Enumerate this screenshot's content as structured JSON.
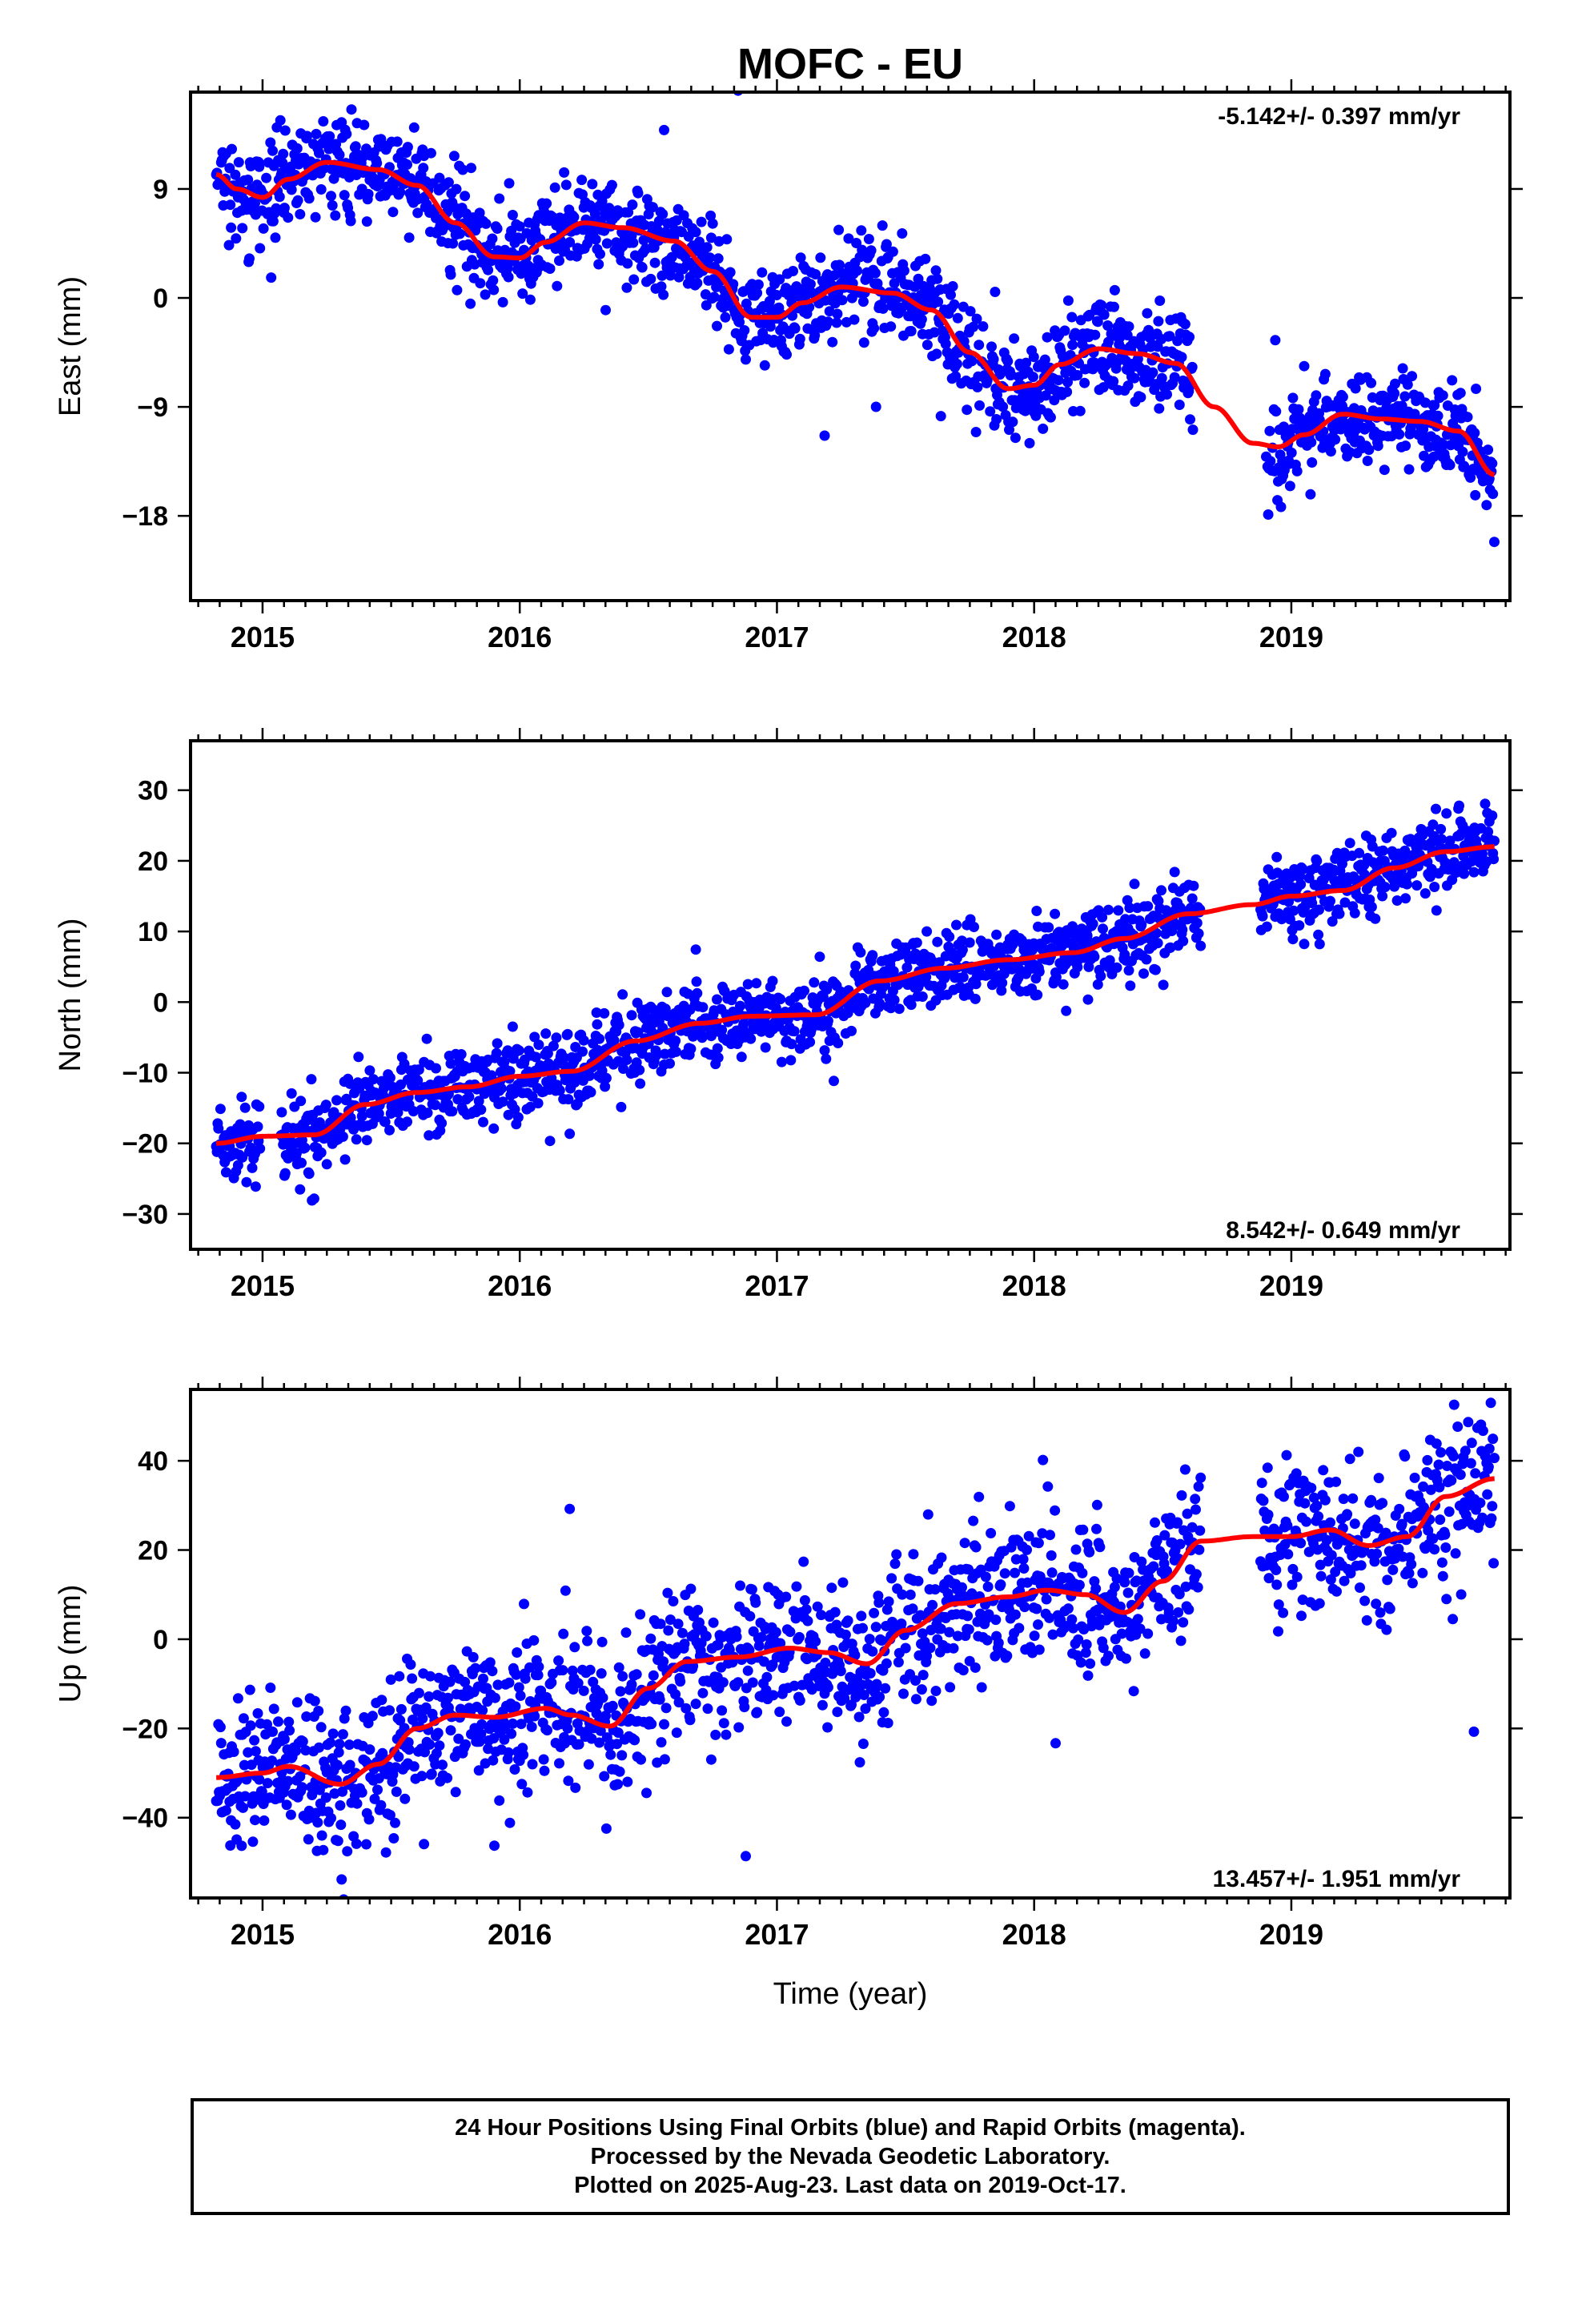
{
  "title": "MOFC - EU",
  "colors": {
    "points": "#0000ff",
    "trend": "#ff0000",
    "frame": "#000000"
  },
  "chart_data": [
    {
      "type": "scatter",
      "component": "east",
      "ylabel": "East (mm)",
      "xlabel": "",
      "rate_text": "-5.142+/- 0.397 mm/yr",
      "rate_position": "top-right",
      "xlim": [
        2014.72,
        2019.85
      ],
      "ylim": [
        -25,
        17
      ],
      "xticks": [
        2015,
        2016,
        2017,
        2018,
        2019
      ],
      "xtick_labels": [
        "2015",
        "2016",
        "2017",
        "2018",
        "2019"
      ],
      "yticks": [
        9,
        0,
        -9,
        -18
      ],
      "ytick_labels": [
        "9",
        "0",
        "−9",
        "−18"
      ],
      "grid": false,
      "series": [
        {
          "kind": "points",
          "color": "#0000ff",
          "x_start": 2014.82,
          "x_end": 2019.79,
          "gaps": [
            [
              2018.62,
              2018.9
            ]
          ],
          "noise_sd": 2.0
        },
        {
          "kind": "trend-line",
          "color": "#ff0000",
          "x": [
            2014.82,
            2014.9,
            2015.0,
            2015.1,
            2015.25,
            2015.45,
            2015.6,
            2015.75,
            2015.9,
            2016.0,
            2016.1,
            2016.25,
            2016.4,
            2016.6,
            2016.75,
            2016.9,
            2017.0,
            2017.1,
            2017.25,
            2017.45,
            2017.6,
            2017.75,
            2017.9,
            2018.0,
            2018.1,
            2018.25,
            2018.4,
            2018.55,
            2018.7,
            2018.85,
            2018.95,
            2019.05,
            2019.2,
            2019.35,
            2019.5,
            2019.65,
            2019.79
          ],
          "y": [
            10.2,
            9.0,
            8.3,
            9.8,
            11.2,
            10.6,
            9.3,
            6.2,
            3.4,
            3.3,
            4.6,
            6.2,
            5.8,
            4.7,
            2.2,
            -1.6,
            -1.6,
            -0.4,
            0.9,
            0.4,
            -1.0,
            -4.5,
            -7.5,
            -7.2,
            -5.5,
            -4.2,
            -4.6,
            -5.4,
            -9.0,
            -12.0,
            -12.3,
            -11.3,
            -9.6,
            -10.0,
            -10.2,
            -11.0,
            -14.6
          ]
        }
      ]
    },
    {
      "type": "scatter",
      "component": "north",
      "ylabel": "North (mm)",
      "xlabel": "",
      "rate_text": "8.542+/- 0.649 mm/yr",
      "rate_position": "bottom-right",
      "xlim": [
        2014.72,
        2019.85
      ],
      "ylim": [
        -35,
        37
      ],
      "xticks": [
        2015,
        2016,
        2017,
        2018,
        2019
      ],
      "xtick_labels": [
        "2015",
        "2016",
        "2017",
        "2018",
        "2019"
      ],
      "yticks": [
        30,
        20,
        10,
        0,
        -10,
        -20,
        -30
      ],
      "ytick_labels": [
        "30",
        "20",
        "10",
        "0",
        "−10",
        "−20",
        "−30"
      ],
      "grid": false,
      "series": [
        {
          "kind": "points",
          "color": "#0000ff",
          "x_start": 2014.82,
          "x_end": 2019.79,
          "gaps": [
            [
              2014.99,
              2015.07
            ],
            [
              2018.65,
              2018.88
            ]
          ],
          "noise_sd": 2.8
        },
        {
          "kind": "trend-line",
          "color": "#ff0000",
          "x": [
            2014.82,
            2015.0,
            2015.2,
            2015.4,
            2015.6,
            2015.8,
            2016.0,
            2016.2,
            2016.45,
            2016.7,
            2016.9,
            2017.15,
            2017.4,
            2017.65,
            2017.9,
            2018.15,
            2018.35,
            2018.6,
            2018.85,
            2019.0,
            2019.2,
            2019.4,
            2019.6,
            2019.79
          ],
          "y": [
            -20.0,
            -19.0,
            -18.8,
            -14.5,
            -12.8,
            -12.0,
            -10.5,
            -9.8,
            -5.5,
            -3.0,
            -2.0,
            -1.8,
            3.0,
            4.8,
            6.0,
            7.0,
            9.0,
            12.5,
            13.8,
            15.0,
            15.8,
            19.0,
            21.3,
            22.0
          ]
        }
      ]
    },
    {
      "type": "scatter",
      "component": "up",
      "ylabel": "Up (mm)",
      "xlabel": "Time (year)",
      "rate_text": "13.457+/- 1.951 mm/yr",
      "rate_position": "bottom-right",
      "xlim": [
        2014.72,
        2019.85
      ],
      "ylim": [
        -58,
        56
      ],
      "xticks": [
        2015,
        2016,
        2017,
        2018,
        2019
      ],
      "xtick_labels": [
        "2015",
        "2016",
        "2017",
        "2018",
        "2019"
      ],
      "yticks": [
        40,
        20,
        0,
        -20,
        -40
      ],
      "ytick_labels": [
        "40",
        "20",
        "0",
        "−20",
        "−40"
      ],
      "grid": false,
      "series": [
        {
          "kind": "points",
          "color": "#0000ff",
          "x_start": 2014.82,
          "x_end": 2019.79,
          "gaps": [
            [
              2018.65,
              2018.88
            ]
          ],
          "noise_sd": 8.5
        },
        {
          "kind": "trend-line",
          "color": "#ff0000",
          "x": [
            2014.82,
            2015.0,
            2015.1,
            2015.3,
            2015.45,
            2015.6,
            2015.75,
            2015.9,
            2016.1,
            2016.2,
            2016.35,
            2016.5,
            2016.65,
            2016.85,
            2017.05,
            2017.2,
            2017.35,
            2017.5,
            2017.7,
            2017.9,
            2018.05,
            2018.2,
            2018.35,
            2018.5,
            2018.65,
            2018.85,
            2019.0,
            2019.15,
            2019.3,
            2019.45,
            2019.6,
            2019.79
          ],
          "y": [
            -31.0,
            -30.0,
            -28.5,
            -32.5,
            -28.0,
            -20.0,
            -17.0,
            -17.5,
            -15.5,
            -17.0,
            -19.5,
            -11.0,
            -5.0,
            -4.0,
            -2.0,
            -3.0,
            -5.5,
            2.0,
            8.0,
            9.5,
            11.0,
            10.0,
            6.0,
            13.0,
            22.0,
            23.0,
            23.0,
            24.5,
            21.0,
            23.0,
            32.0,
            36.0
          ]
        }
      ]
    }
  ],
  "footer": {
    "line1": "24 Hour Positions Using Final Orbits (blue) and Rapid Orbits (magenta).",
    "line2": "Processed by the Nevada Geodetic Laboratory.",
    "line3": "Plotted on 2025-Aug-23. Last data on 2019-Oct-17."
  }
}
